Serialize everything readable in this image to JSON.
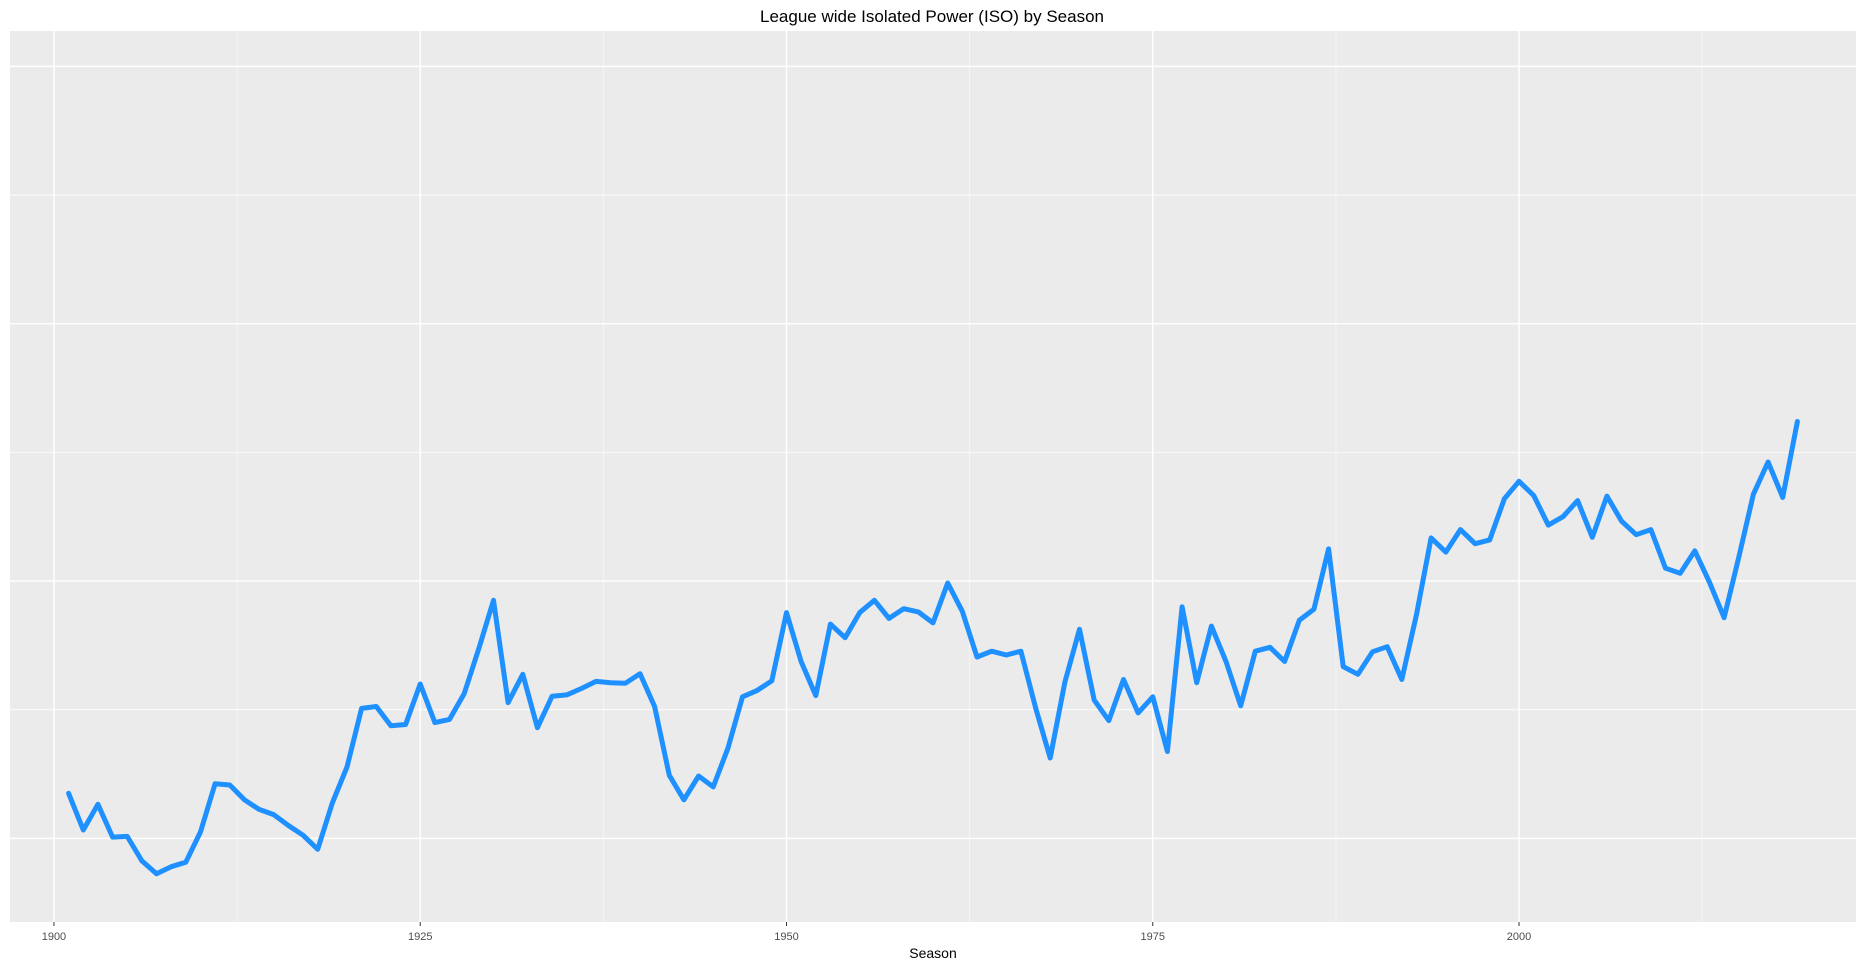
{
  "chart_data": {
    "type": "line",
    "title": "League wide Isolated Power (ISO) by Season",
    "xlabel": "Season",
    "ylabel": "",
    "xlim": [
      1897,
      2023
    ],
    "ylim": [
      0.0445,
      0.183
    ],
    "x_ticks": [
      1900,
      1925,
      1950,
      1975,
      2000
    ],
    "y_ticks_labeled": false,
    "grid": true,
    "legend": "none",
    "colors": {
      "line": "#1e90ff",
      "panel": "#ebebeb",
      "grid_major": "#ffffff",
      "grid_minor": "#f5f5f5"
    },
    "series": [
      {
        "x": [
          1901,
          1902,
          1903,
          1904,
          1905,
          1906,
          1907,
          1908,
          1909,
          1910,
          1911,
          1912,
          1913,
          1914,
          1915,
          1916,
          1917,
          1918,
          1919,
          1920,
          1921,
          1922,
          1923,
          1924,
          1925,
          1926,
          1927,
          1928,
          1929,
          1930,
          1931,
          1932,
          1933,
          1934,
          1935,
          1936,
          1937,
          1938,
          1939,
          1940,
          1941,
          1942,
          1943,
          1944,
          1945,
          1946,
          1947,
          1948,
          1949,
          1950,
          1951,
          1952,
          1953,
          1954,
          1955,
          1956,
          1957,
          1958,
          1959,
          1960,
          1961,
          1962,
          1963,
          1964,
          1965,
          1966,
          1967,
          1968,
          1969,
          1970,
          1971,
          1972,
          1973,
          1974,
          1975,
          1976,
          1977,
          1978,
          1979,
          1980,
          1981,
          1982,
          1983,
          1984,
          1985,
          1986,
          1987,
          1988,
          1989,
          1990,
          1991,
          1992,
          1993,
          1994,
          1995,
          1996,
          1997,
          1998,
          1999,
          2000,
          2001,
          2002,
          2003,
          2004,
          2005,
          2006,
          2007,
          2008,
          2009,
          2010,
          2011,
          2012,
          2013,
          2014,
          2015,
          2016,
          2017,
          2018,
          2019
        ],
        "values": [
          0.0645,
          0.0588,
          0.0628,
          0.0577,
          0.0578,
          0.054,
          0.052,
          0.0531,
          0.0538,
          0.0585,
          0.066,
          0.0658,
          0.0635,
          0.062,
          0.0612,
          0.0595,
          0.058,
          0.0558,
          0.063,
          0.0686,
          0.0777,
          0.078,
          0.075,
          0.0752,
          0.0815,
          0.0755,
          0.076,
          0.08,
          0.087,
          0.0945,
          0.0786,
          0.083,
          0.0747,
          0.0796,
          0.0798,
          0.0808,
          0.0819,
          0.0817,
          0.0816,
          0.0831,
          0.078,
          0.0673,
          0.0635,
          0.0672,
          0.0655,
          0.0715,
          0.0795,
          0.0805,
          0.082,
          0.0926,
          0.085,
          0.0797,
          0.0908,
          0.0887,
          0.0926,
          0.0945,
          0.0917,
          0.0932,
          0.0927,
          0.091,
          0.0972,
          0.0928,
          0.0857,
          0.0866,
          0.086,
          0.0866,
          0.0778,
          0.07,
          0.0818,
          0.09,
          0.079,
          0.0758,
          0.0822,
          0.077,
          0.0795,
          0.071,
          0.0935,
          0.0817,
          0.0905,
          0.085,
          0.0781,
          0.0866,
          0.0872,
          0.085,
          0.0914,
          0.0931,
          0.1025,
          0.0842,
          0.083,
          0.0865,
          0.0873,
          0.0822,
          0.0923,
          0.1042,
          0.102,
          0.1055,
          0.1033,
          0.1039,
          0.1103,
          0.113,
          0.1108,
          0.1062,
          0.1075,
          0.11,
          0.1043,
          0.1107,
          0.1068,
          0.1047,
          0.1055,
          0.0995,
          0.0987,
          0.1022,
          0.0973,
          0.0918,
          0.1012,
          0.111,
          0.116,
          0.1105,
          0.1223
        ]
      }
    ]
  }
}
